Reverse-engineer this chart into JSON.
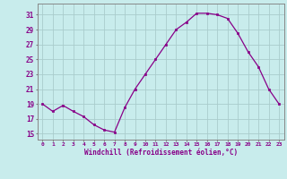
{
  "x": [
    0,
    1,
    2,
    3,
    4,
    5,
    6,
    7,
    8,
    9,
    10,
    11,
    12,
    13,
    14,
    15,
    16,
    17,
    18,
    19,
    20,
    21,
    22,
    23
  ],
  "y": [
    19,
    18,
    18.8,
    18,
    17.3,
    16.2,
    15.5,
    15.2,
    18.5,
    21,
    23,
    25,
    27,
    29,
    30,
    31.2,
    31.2,
    31,
    30.5,
    28.5,
    26,
    24,
    21,
    19
  ],
  "line_color": "#880088",
  "marker": "s",
  "marker_size": 2,
  "bg_color": "#c8ecec",
  "grid_color": "#aacccc",
  "xlabel": "Windchill (Refroidissement éolien,°C)",
  "xlabel_color": "#880088",
  "ylabel_ticks": [
    15,
    17,
    19,
    21,
    23,
    25,
    27,
    29,
    31
  ],
  "xtick_labels": [
    "0",
    "1",
    "2",
    "3",
    "4",
    "5",
    "6",
    "7",
    "8",
    "9",
    "10",
    "11",
    "12",
    "13",
    "14",
    "15",
    "16",
    "17",
    "18",
    "19",
    "20",
    "21",
    "22",
    "23"
  ],
  "ylim": [
    14.2,
    32.5
  ],
  "xlim": [
    -0.5,
    23.5
  ]
}
